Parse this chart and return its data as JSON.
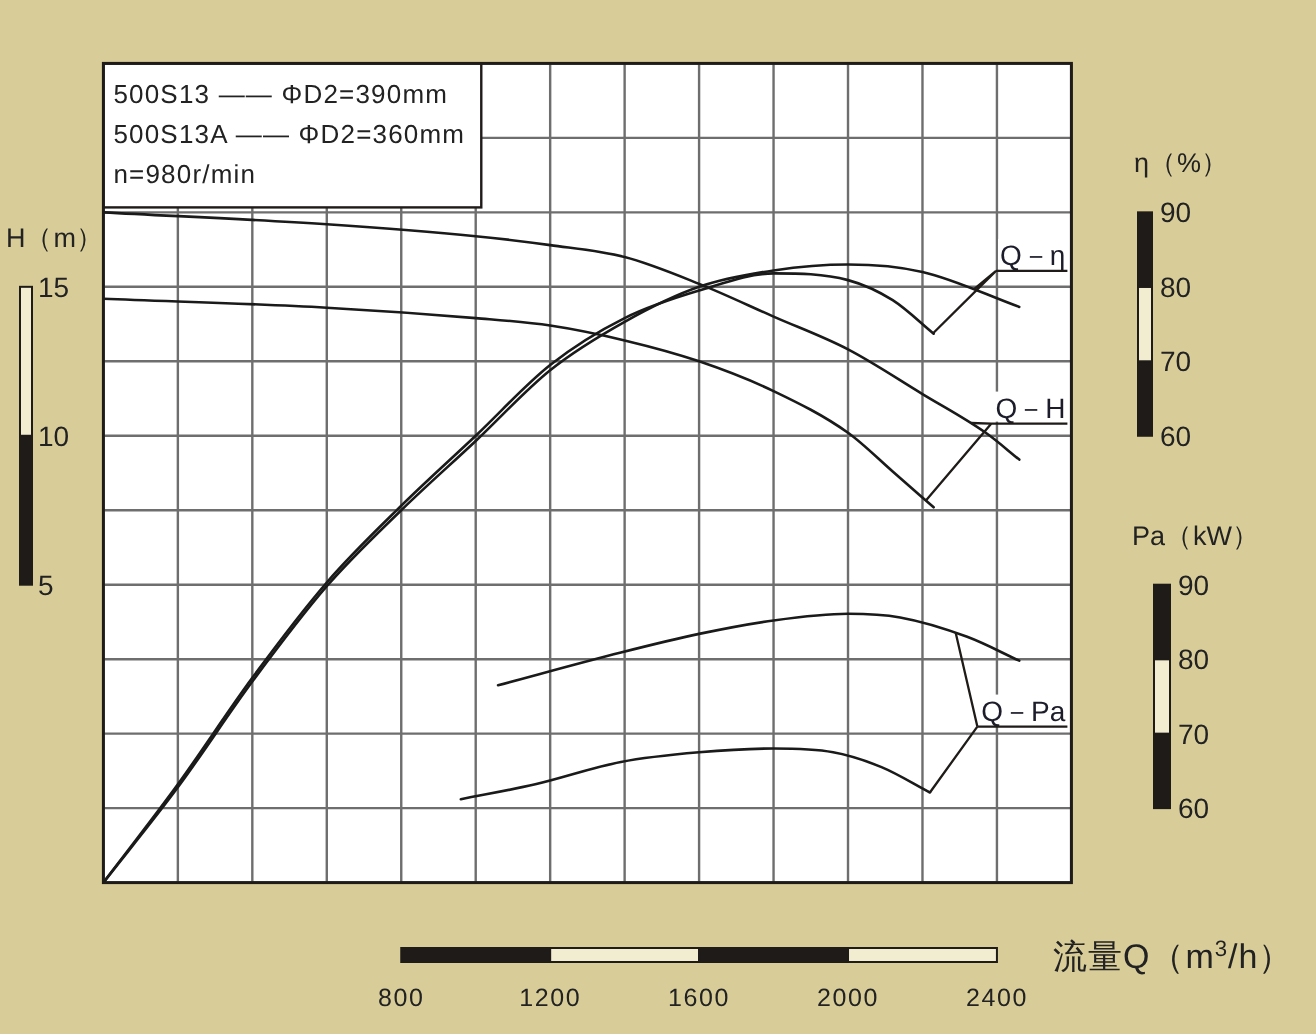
{
  "chart_data": {
    "type": "line",
    "xlabel": "流量Q（m$^{3}$/h）",
    "ylabel": "H（m）",
    "y2label": "η（%）",
    "y3label": "Pa（kW）",
    "xlim": [
      0,
      2600
    ],
    "xticks": [
      {
        "value": 0,
        "label": null
      },
      {
        "value": 200,
        "label": null
      },
      {
        "value": 400,
        "label": null
      },
      {
        "value": 600,
        "label": null
      },
      800,
      {
        "value": 1000,
        "label": null
      },
      1200,
      {
        "value": 1400,
        "label": null
      },
      1600,
      {
        "value": 1800,
        "label": null
      },
      2000,
      {
        "value": 2200,
        "label": null
      },
      2400,
      {
        "value": 2600,
        "label": null
      }
    ],
    "ylim": [
      -5,
      22.5
    ],
    "yticks": [
      {
        "value": -5,
        "label": null
      },
      {
        "value": -2.5,
        "label": null
      },
      {
        "value": 0,
        "label": null
      },
      {
        "value": 2.5,
        "label": null
      },
      5,
      {
        "value": 7.5,
        "label": null
      },
      10,
      {
        "value": 12.5,
        "label": null
      },
      15,
      {
        "value": 17.5,
        "label": null
      },
      {
        "value": 20,
        "label": null
      },
      {
        "value": 22.5,
        "label": null
      }
    ],
    "y2lim": [
      0,
      110
    ],
    "y2ticks": [
      60,
      70,
      80,
      90
    ],
    "y3lim": [
      50,
      160
    ],
    "y3ticks": [
      60,
      70,
      80,
      90
    ],
    "grid": true,
    "annotations": [
      "500S13 —— ΦD2=390mm",
      "500S13A —— ΦD2=360mm",
      "n=980r/min"
    ],
    "series": [
      {
        "name": "Q－H",
        "color": "#1a1a1a",
        "x": [
          0,
          600,
          1000,
          1200,
          1400,
          1600,
          1800,
          2000,
          2200,
          2370,
          2460
        ],
        "values": [
          17.5,
          17.1,
          16.7,
          16.4,
          16.0,
          15.1,
          14.0,
          12.9,
          11.4,
          10.1,
          9.2
        ]
      },
      {
        "color": "#1a1a1a",
        "x": [
          0,
          600,
          1000,
          1200,
          1400,
          1600,
          1800,
          2000,
          2120,
          2230
        ],
        "values": [
          14.6,
          14.3,
          13.95,
          13.7,
          13.2,
          12.5,
          11.5,
          10.1,
          8.8,
          7.6
        ]
      },
      {
        "name": "Q－η",
        "color": "#1a1a1a",
        "axis": "y2",
        "x": [
          0,
          200,
          400,
          600,
          800,
          1000,
          1200,
          1400,
          1600,
          1800,
          2000,
          2200,
          2460
        ],
        "values": [
          0,
          12.8,
          27.0,
          39.8,
          50.0,
          59.3,
          68.8,
          75.3,
          80.0,
          82.2,
          83.0,
          82.0,
          77.3
        ]
      },
      {
        "color": "#1a1a1a",
        "axis": "y2",
        "x": [
          0,
          200,
          400,
          600,
          800,
          1000,
          1200,
          1400,
          1600,
          1800,
          2000,
          2120,
          2230
        ],
        "values": [
          0,
          13.2,
          27.5,
          40.3,
          50.6,
          60.0,
          69.5,
          75.8,
          79.5,
          81.8,
          80.9,
          78.2,
          73.7
        ]
      },
      {
        "name": "Q－Pa",
        "color": "#1a1a1a",
        "axis": "y3",
        "x": [
          1060,
          1390,
          1600,
          1800,
          2000,
          2140,
          2320,
          2460
        ],
        "values": [
          76.5,
          80.9,
          83.4,
          85.2,
          86.1,
          85.6,
          83.0,
          79.8
        ]
      },
      {
        "color": "#1a1a1a",
        "axis": "y3",
        "x": [
          960,
          1160,
          1390,
          1600,
          1800,
          1960,
          2090,
          2220
        ],
        "values": [
          61.2,
          63.2,
          66.2,
          67.5,
          68.0,
          67.5,
          65.5,
          62.1
        ]
      }
    ]
  }
}
